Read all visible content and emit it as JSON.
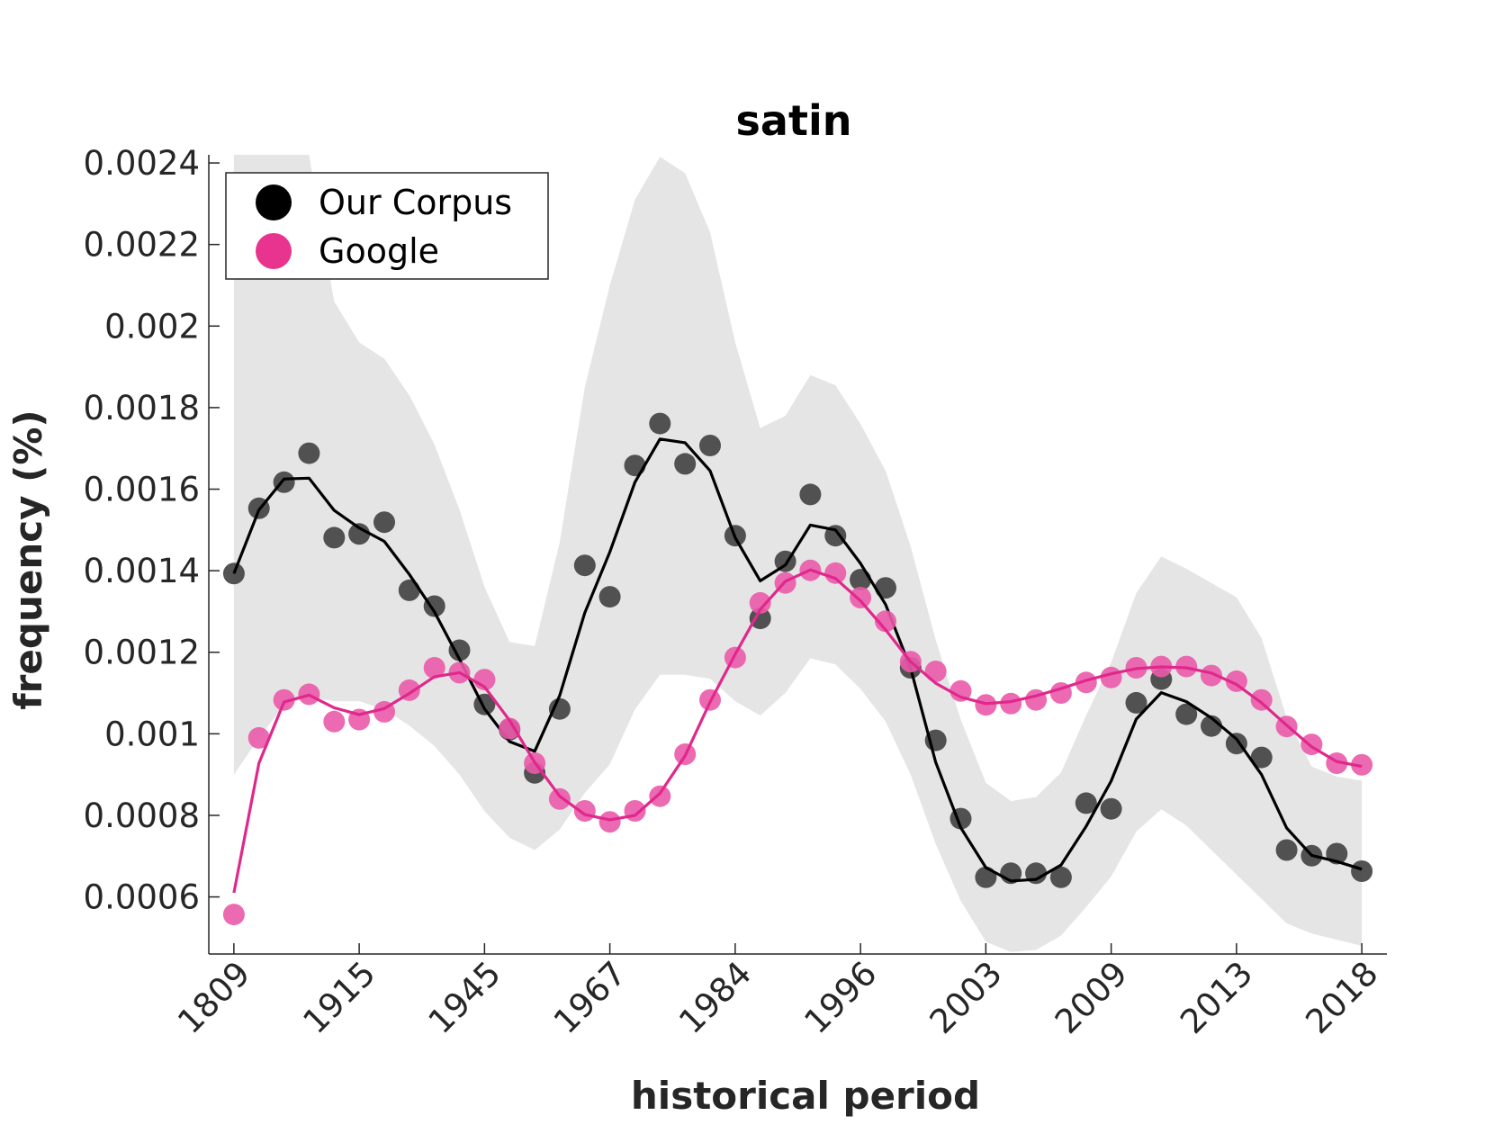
{
  "chart_data": {
    "type": "scatter",
    "title": "satin",
    "xlabel": "historical period",
    "ylabel": "frequency (%)",
    "x_tick_labels": [
      "1809",
      "1915",
      "1945",
      "1967",
      "1984",
      "1996",
      "2003",
      "2009",
      "2013",
      "2018"
    ],
    "x_tick_positions": [
      0,
      5,
      10,
      15,
      20,
      25,
      30,
      35,
      40,
      45
    ],
    "y_ticks": [
      0.0006,
      0.0008,
      0.001,
      0.0012,
      0.0014,
      0.0016,
      0.0018,
      0.002,
      0.0022,
      0.0024
    ],
    "y_tick_labels": [
      "0.0006",
      "0.0008",
      "0.001",
      "0.0012",
      "0.0014",
      "0.0016",
      "0.0018",
      "0.002",
      "0.0022",
      "0.0024"
    ],
    "xlim": [
      -1,
      46
    ],
    "ylim": [
      0.00046,
      0.00242
    ],
    "legend_position": "top-left",
    "series": [
      {
        "name": "Our Corpus",
        "color": "#000000",
        "marker_color": "#404040",
        "points": [
          0.001393,
          0.001553,
          0.001617,
          0.001688,
          0.001481,
          0.00149,
          0.001519,
          0.001352,
          0.001313,
          0.001205,
          0.001072,
          0.00101,
          0.000904,
          0.001061,
          0.001413,
          0.001336,
          0.001658,
          0.001761,
          0.001662,
          0.001707,
          0.001486,
          0.001283,
          0.001423,
          0.001587,
          0.001486,
          0.001378,
          0.001358,
          0.001162,
          0.000984,
          0.000792,
          0.000648,
          0.000658,
          0.000658,
          0.000648,
          0.00083,
          0.000816,
          0.001076,
          0.001134,
          0.001048,
          0.001019,
          0.000976,
          0.000942,
          0.000715,
          0.000701,
          0.000706,
          0.000663
        ],
        "trend": [
          0.001393,
          0.001549,
          0.001625,
          0.001627,
          0.001548,
          0.001505,
          0.001472,
          0.001391,
          0.001299,
          0.001183,
          0.001061,
          0.000981,
          0.000957,
          0.001094,
          0.001297,
          0.001446,
          0.001617,
          0.001723,
          0.001714,
          0.001645,
          0.001481,
          0.001375,
          0.001414,
          0.001512,
          0.0015,
          0.001418,
          0.001317,
          0.001161,
          0.00093,
          0.00077,
          0.000672,
          0.000639,
          0.000643,
          0.000678,
          0.000773,
          0.000884,
          0.001036,
          0.001101,
          0.001079,
          0.001039,
          0.000987,
          0.0009,
          0.000769,
          0.000702,
          0.000687,
          0.000668
        ],
        "band_upper": [
          0.00242,
          0.00242,
          0.00242,
          0.00242,
          0.00206,
          0.00196,
          0.00192,
          0.00183,
          0.00171,
          0.00155,
          0.00136,
          0.001225,
          0.001215,
          0.00147,
          0.00185,
          0.0021,
          0.00231,
          0.002415,
          0.002375,
          0.00223,
          0.00196,
          0.00175,
          0.00178,
          0.00188,
          0.001855,
          0.00176,
          0.001645,
          0.00146,
          0.00123,
          0.001035,
          0.00088,
          0.000835,
          0.000845,
          0.000905,
          0.001045,
          0.001175,
          0.001345,
          0.001435,
          0.001405,
          0.00137,
          0.001335,
          0.001235,
          0.00104,
          0.00092,
          0.000895,
          0.000885
        ],
        "band_lower": [
          0.0009,
          0.00099,
          0.00107,
          0.00109,
          0.00108,
          0.00108,
          0.00106,
          0.00102,
          0.00097,
          0.0009,
          0.00081,
          0.000745,
          0.000715,
          0.000765,
          0.000855,
          0.000925,
          0.00106,
          0.001145,
          0.001145,
          0.001135,
          0.00108,
          0.001045,
          0.0011,
          0.001185,
          0.00117,
          0.00111,
          0.00103,
          0.0009,
          0.00073,
          0.00059,
          0.00049,
          0.000465,
          0.00047,
          0.000505,
          0.000575,
          0.00065,
          0.00076,
          0.000815,
          0.000775,
          0.000715,
          0.000655,
          0.000595,
          0.000535,
          0.00051,
          0.000495,
          0.00048
        ]
      },
      {
        "name": "Google",
        "color": "#e0288c",
        "marker_color": "#ea5aa8",
        "points": [
          0.000557,
          0.00099,
          0.001083,
          0.001097,
          0.00103,
          0.001035,
          0.001054,
          0.001107,
          0.001162,
          0.00115,
          0.001133,
          0.001013,
          0.000928,
          0.00084,
          0.000811,
          0.000784,
          0.000811,
          0.000847,
          0.00095,
          0.001083,
          0.001187,
          0.001321,
          0.00137,
          0.001401,
          0.001394,
          0.001334,
          0.001276,
          0.001177,
          0.001153,
          0.001105,
          0.001071,
          0.001074,
          0.001083,
          0.0011,
          0.001126,
          0.001138,
          0.001162,
          0.001165,
          0.001165,
          0.001143,
          0.001129,
          0.001083,
          0.001018,
          0.000974,
          0.000928,
          0.000924
        ],
        "trend": [
          0.00061,
          0.000928,
          0.001078,
          0.001095,
          0.001064,
          0.001047,
          0.001062,
          0.001099,
          0.00114,
          0.00115,
          0.001115,
          0.001033,
          0.00093,
          0.000847,
          0.000802,
          0.000789,
          0.0008,
          0.000854,
          0.000946,
          0.001078,
          0.001195,
          0.001305,
          0.001374,
          0.001402,
          0.001381,
          0.001326,
          0.001255,
          0.001177,
          0.001124,
          0.00109,
          0.001074,
          0.001079,
          0.001093,
          0.001111,
          0.001131,
          0.001147,
          0.00116,
          0.001164,
          0.001162,
          0.001149,
          0.001121,
          0.001076,
          0.001021,
          0.000968,
          0.000932,
          0.00092
        ]
      }
    ]
  }
}
